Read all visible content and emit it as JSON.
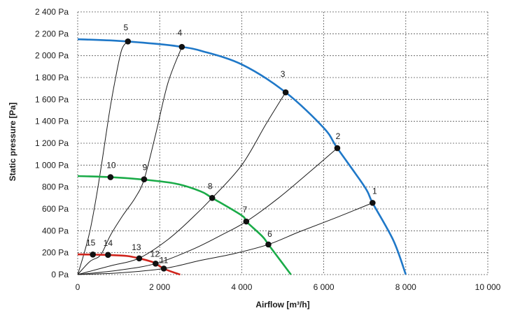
{
  "chart_data": {
    "type": "line",
    "title": "",
    "xlabel": "Airflow [m³/h]",
    "ylabel": "Static pressure [Pa]",
    "xlim": [
      0,
      10000
    ],
    "ylim": [
      0,
      2400
    ],
    "x_ticks": [
      0,
      2000,
      4000,
      6000,
      8000,
      10000
    ],
    "x_tick_labels": [
      "0",
      "2 000",
      "4 000",
      "6 000",
      "8 000",
      "10 000"
    ],
    "y_ticks": [
      0,
      200,
      400,
      600,
      800,
      1000,
      1200,
      1400,
      1600,
      1800,
      2000,
      2200,
      2400
    ],
    "y_tick_labels": [
      "0 Pa",
      "200 Pa",
      "400 Pa",
      "600 Pa",
      "800 Pa",
      "1 000 Pa",
      "1 200 Pa",
      "1 400 Pa",
      "1 600 Pa",
      "1 800 Pa",
      "2 000 Pa",
      "2 200 Pa",
      "2 400 Pa"
    ],
    "grid": true,
    "legend": "none",
    "fan_curves": [
      {
        "color": "#1f78c8",
        "x": [
          0,
          1000,
          2000,
          2540,
          3000,
          4000,
          5070,
          6000,
          6330,
          7000,
          7190,
          7700,
          8000
        ],
        "y": [
          2150,
          2135,
          2105,
          2080,
          2045,
          1920,
          1665,
          1340,
          1155,
          800,
          655,
          310,
          0
        ]
      },
      {
        "color": "#1aab48",
        "x": [
          0,
          800,
          1600,
          2400,
          3000,
          3280,
          4000,
          4110,
          4500,
          4650,
          5000,
          5200
        ],
        "y": [
          900,
          890,
          868,
          830,
          760,
          700,
          540,
          485,
          350,
          275,
          100,
          0
        ]
      },
      {
        "color": "#d0241c",
        "x": [
          0,
          400,
          800,
          1200,
          1500,
          1800,
          1900,
          2100,
          2300,
          2500
        ],
        "y": [
          185,
          182,
          178,
          170,
          148,
          118,
          100,
          55,
          25,
          0
        ]
      }
    ],
    "system_curves": [
      {
        "x": [
          0,
          150,
          300,
          450,
          600,
          760,
          900,
          1070,
          1225
        ],
        "y": [
          0,
          185,
          400,
          700,
          1050,
          1450,
          1750,
          2050,
          2130
        ]
      },
      {
        "x": [
          0,
          300,
          560,
          800,
          1100,
          1400,
          1620,
          1900,
          2200,
          2540
        ],
        "y": [
          0,
          120,
          180,
          360,
          540,
          700,
          870,
          1280,
          1750,
          2080
        ]
      },
      {
        "x": [
          0,
          800,
          1500,
          2200,
          2800,
          3280,
          4000,
          4600,
          5070
        ],
        "y": [
          0,
          80,
          150,
          320,
          520,
          700,
          1000,
          1380,
          1665
        ]
      },
      {
        "x": [
          0,
          1000,
          1900,
          2800,
          3500,
          4110,
          4900,
          5600,
          6330
        ],
        "y": [
          0,
          40,
          100,
          230,
          360,
          485,
          700,
          920,
          1155
        ]
      },
      {
        "x": [
          0,
          1000,
          2100,
          3000,
          3800,
          4650,
          5400,
          6300,
          7190
        ],
        "y": [
          0,
          15,
          55,
          130,
          190,
          275,
          390,
          520,
          655
        ]
      }
    ],
    "points": [
      {
        "label": "1",
        "x": 7190,
        "y": 655
      },
      {
        "label": "2",
        "x": 6330,
        "y": 1155
      },
      {
        "label": "3",
        "x": 5070,
        "y": 1665
      },
      {
        "label": "4",
        "x": 2540,
        "y": 2080
      },
      {
        "label": "5",
        "x": 1225,
        "y": 2130
      },
      {
        "label": "6",
        "x": 4650,
        "y": 275
      },
      {
        "label": "7",
        "x": 4110,
        "y": 485
      },
      {
        "label": "8",
        "x": 3280,
        "y": 700
      },
      {
        "label": "9",
        "x": 1620,
        "y": 870
      },
      {
        "label": "10",
        "x": 800,
        "y": 890
      },
      {
        "label": "11",
        "x": 2100,
        "y": 55
      },
      {
        "label": "12",
        "x": 1900,
        "y": 100
      },
      {
        "label": "13",
        "x": 1500,
        "y": 148
      },
      {
        "label": "14",
        "x": 740,
        "y": 180
      },
      {
        "label": "15",
        "x": 370,
        "y": 183
      }
    ]
  }
}
